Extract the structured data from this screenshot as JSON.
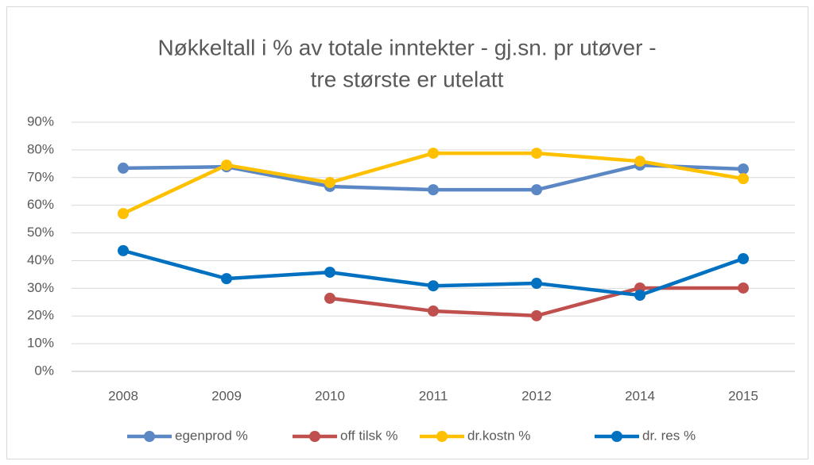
{
  "chart_data": {
    "type": "line",
    "title": [
      "Nøkkeltall i % av totale inntekter - gj.sn. pr utøver -",
      "tre største er utelatt"
    ],
    "categories": [
      "2008",
      "2009",
      "2010",
      "2011",
      "2012",
      "2014",
      "2015"
    ],
    "series": [
      {
        "name": "egenprod %",
        "color": "#5b87c5",
        "values": [
          73.4,
          73.9,
          66.8,
          65.6,
          65.6,
          74.5,
          73.1
        ]
      },
      {
        "name": "off tilsk %",
        "color": "#c0504d",
        "values": [
          null,
          null,
          26.4,
          21.8,
          20.1,
          30.1,
          30.1
        ]
      },
      {
        "name": "dr.kostn %",
        "color": "#ffc000",
        "values": [
          57.0,
          74.5,
          68.2,
          78.8,
          78.8,
          75.9,
          69.6
        ]
      },
      {
        "name": "dr. res %",
        "color": "#0070c0",
        "values": [
          43.6,
          33.5,
          35.8,
          30.9,
          31.8,
          27.5,
          40.7
        ]
      }
    ],
    "ylim": [
      0,
      90
    ],
    "yticks": [
      {
        "value": 0,
        "label": "0%"
      },
      {
        "value": 10,
        "label": "10%"
      },
      {
        "value": 20,
        "label": "20%"
      },
      {
        "value": 30,
        "label": "30%"
      },
      {
        "value": 40,
        "label": "40%"
      },
      {
        "value": 50,
        "label": "50%"
      },
      {
        "value": 60,
        "label": "60%"
      },
      {
        "value": 70,
        "label": "70%"
      },
      {
        "value": 80,
        "label": "80%"
      },
      {
        "value": 90,
        "label": "90%"
      }
    ],
    "grid": true,
    "legend": "bottom"
  }
}
